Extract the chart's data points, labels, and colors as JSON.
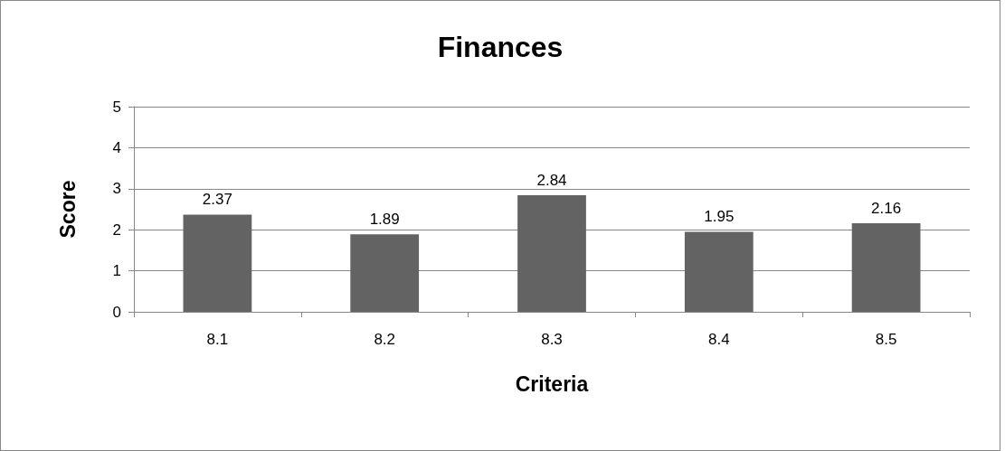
{
  "chart_data": {
    "type": "bar",
    "title": "Finances",
    "xlabel": "Criteria",
    "ylabel": "Score",
    "categories": [
      "8.1",
      "8.2",
      "8.3",
      "8.4",
      "8.5"
    ],
    "values": [
      2.37,
      1.89,
      2.84,
      1.95,
      2.16
    ],
    "color": "#636363",
    "ylim": [
      0,
      5
    ],
    "yticks": [
      0,
      1,
      2,
      3,
      4,
      5
    ],
    "grid": "y",
    "data_labels": true
  }
}
